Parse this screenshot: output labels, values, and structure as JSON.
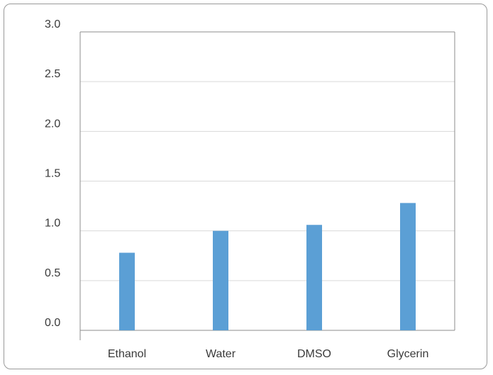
{
  "chart_data": {
    "type": "bar",
    "title": "",
    "xlabel": "",
    "ylabel": "",
    "categories": [
      "Ethanol",
      "Water",
      "DMSO",
      "Glycerin"
    ],
    "values": [
      0.78,
      1.0,
      1.06,
      1.28
    ],
    "ylim": [
      0,
      3.0
    ],
    "yticks": [
      "0.0",
      "0.5",
      "1.0",
      "1.5",
      "2.0",
      "2.5",
      "3.0"
    ],
    "grid": true,
    "legend": "none",
    "bar_color": "#5b9fd5",
    "grid_color": "#d9d9d9",
    "axis_color": "#8c8c8c"
  }
}
